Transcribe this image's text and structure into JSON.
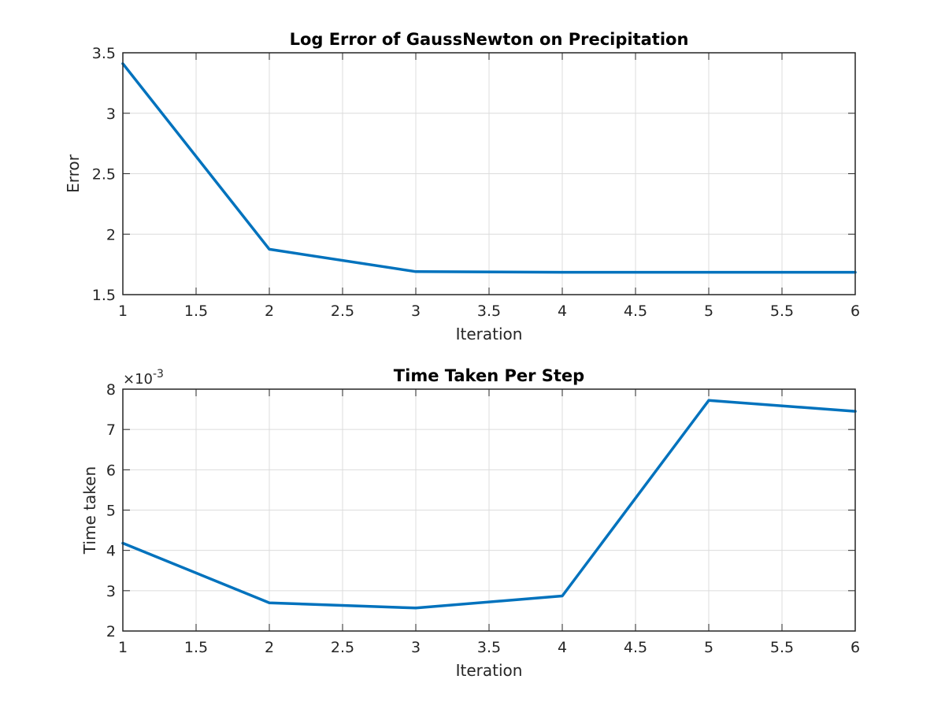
{
  "chart_data": [
    {
      "type": "line",
      "title": "Log Error of GaussNewton on Precipitation",
      "xlabel": "Iteration",
      "ylabel": "Error",
      "xlim": [
        1,
        6
      ],
      "ylim": [
        1.5,
        3.5
      ],
      "xticks": [
        "1",
        "1.5",
        "2",
        "2.5",
        "3",
        "3.5",
        "4",
        "4.5",
        "5",
        "5.5",
        "6"
      ],
      "yticks": [
        "1.5",
        "2",
        "2.5",
        "3",
        "3.5"
      ],
      "grid": true,
      "x": [
        1,
        2,
        3,
        4,
        5,
        6
      ],
      "series": [
        {
          "values": [
            3.41,
            1.875,
            1.69,
            1.685,
            1.685,
            1.685
          ],
          "color": "#0072BD"
        }
      ]
    },
    {
      "type": "line",
      "title": "Time Taken Per Step",
      "xlabel": "Iteration",
      "ylabel": "Time taken",
      "xlim": [
        1,
        6
      ],
      "ylim": [
        2,
        8
      ],
      "xticks": [
        "1",
        "1.5",
        "2",
        "2.5",
        "3",
        "3.5",
        "4",
        "4.5",
        "5",
        "5.5",
        "6"
      ],
      "yticks": [
        "2",
        "3",
        "4",
        "5",
        "6",
        "7",
        "8"
      ],
      "exponent_base": "×10",
      "exponent_power": "-3",
      "grid": true,
      "x": [
        1,
        2,
        3,
        4,
        5,
        6
      ],
      "series": [
        {
          "values": [
            4.18,
            2.7,
            2.57,
            2.87,
            7.72,
            7.45
          ],
          "color": "#0072BD"
        }
      ]
    }
  ]
}
